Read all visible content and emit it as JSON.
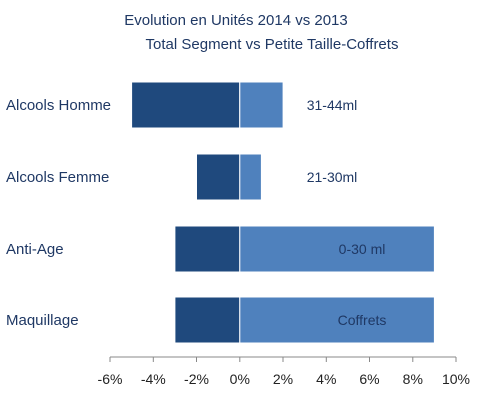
{
  "chart_data": {
    "type": "bar",
    "orientation": "horizontal",
    "stacked": true,
    "title": "Evolution en Unités 2014 vs 2013",
    "subtitle": "Total Segment vs Petite Taille-Coffrets",
    "categories": [
      "Alcools Homme",
      "Alcools Femme",
      "Anti-Age",
      "Maquillage"
    ],
    "series": [
      {
        "color": "#1f497d",
        "values": [
          -5,
          -2,
          -3,
          -3
        ]
      },
      {
        "color": "#4f81bd",
        "values": [
          2,
          1,
          9,
          9
        ]
      }
    ],
    "data_labels": [
      "31-44ml",
      "21-30ml",
      "0-30 ml",
      "Coffrets"
    ],
    "xlim": [
      -6,
      10
    ],
    "x_ticks": [
      "-6%",
      "-4%",
      "-2%",
      "0%",
      "2%",
      "4%",
      "6%",
      "8%",
      "10%"
    ],
    "x_tick_values": [
      -6,
      -4,
      -2,
      0,
      2,
      4,
      6,
      8,
      10
    ],
    "grid": false,
    "legend": "none"
  }
}
